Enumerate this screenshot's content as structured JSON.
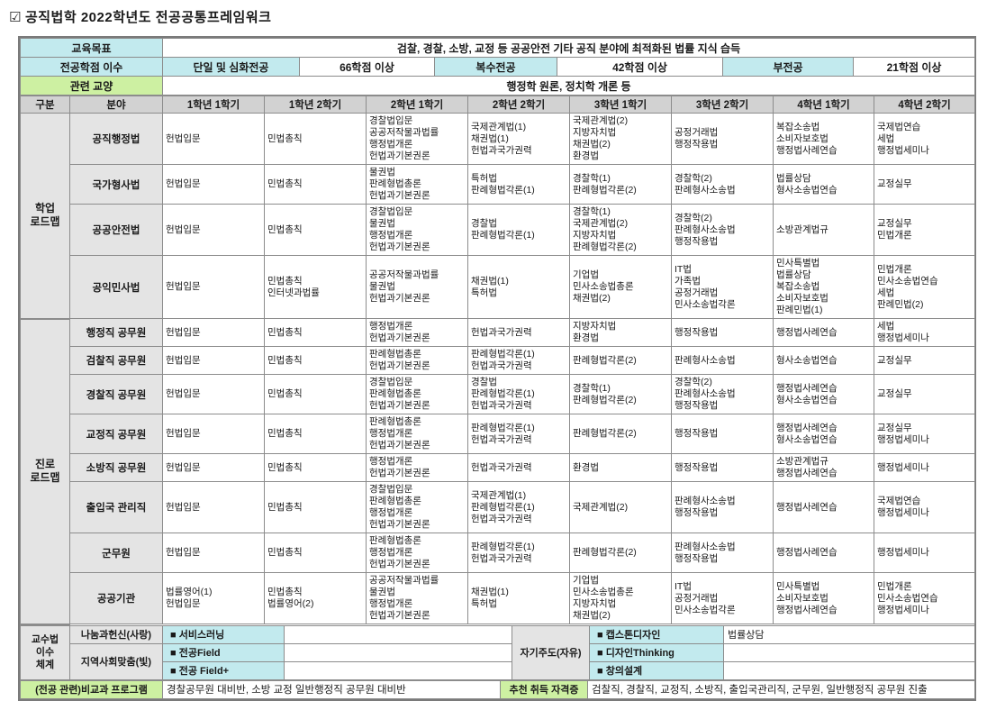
{
  "title": {
    "checkbox": "☑",
    "text": "공직법학 2022학년도 전공공통프레임워크"
  },
  "colors": {
    "cyan": "#c2eaee",
    "green": "#cdf0a2",
    "header_grey": "#d2d2d2",
    "field_grey": "#e4e4e4",
    "border": "#8c8c8c"
  },
  "info": {
    "edu_goal_label": "교육목표",
    "edu_goal_value": "검찰, 경찰, 소방, 교정 등 공공안전 기타 공직 분야에 최적화된 법률 지식 습득",
    "credit_label": "전공학점 이수",
    "credit_items": [
      {
        "label": "단일 및 심화전공",
        "value": "66학점 이상"
      },
      {
        "label": "복수전공",
        "value": "42학점 이상"
      },
      {
        "label": "부전공",
        "value": "21학점 이상"
      }
    ],
    "liberal_label": "관련 교양",
    "liberal_value": "행정학 원론, 정치학 개론 등"
  },
  "roadmap": {
    "columns": [
      "구분",
      "분야",
      "1학년 1학기",
      "1학년 2학기",
      "2학년 1학기",
      "2학년 2학기",
      "3학년 1학기",
      "3학년 2학기",
      "4학년 1학기",
      "4학년 2학기"
    ],
    "sections": [
      {
        "group": "학업\n로드맵",
        "rows": [
          {
            "field": "공직행정법",
            "semesters": [
              [
                "헌법입문"
              ],
              [
                "민법총칙"
              ],
              [
                "경찰법입문",
                "공공저작물과법률",
                "행정법개론",
                "헌법과기본권론"
              ],
              [
                "국제관계법(1)",
                "채권법(1)",
                "헌법과국가권력"
              ],
              [
                "국제관계법(2)",
                "지방자치법",
                "채권법(2)",
                "환경법"
              ],
              [
                "공정거래법",
                "행정작용법"
              ],
              [
                "복잡소송법",
                "소비자보호법",
                "행정법사례연습"
              ],
              [
                "국제법연습",
                "세법",
                "행정법세미나"
              ]
            ]
          },
          {
            "field": "국가형사법",
            "semesters": [
              [
                "헌법입문"
              ],
              [
                "민법총칙"
              ],
              [
                "물권법",
                "판례형법총론",
                "헌법과기본권론"
              ],
              [
                "특허법",
                "판례형법각론(1)"
              ],
              [
                "경찰학(1)",
                "판례형법각론(2)"
              ],
              [
                "경찰학(2)",
                "판례형사소송법"
              ],
              [
                "법률상담",
                "형사소송법연습"
              ],
              [
                "교정실무"
              ]
            ]
          },
          {
            "field": "공공안전법",
            "semesters": [
              [
                "헌법입문"
              ],
              [
                "민법총칙"
              ],
              [
                "경찰법입문",
                "물권법",
                "행정법개론",
                "헌법과기본권론"
              ],
              [
                "경찰법",
                "판례형법각론(1)"
              ],
              [
                "경찰학(1)",
                "국제관계법(2)",
                "지방자치법",
                "판례형법각론(2)"
              ],
              [
                "경찰학(2)",
                "판례형사소송법",
                "행정작용법"
              ],
              [
                "소방관계법규"
              ],
              [
                "교정실무",
                "민법개론"
              ]
            ]
          },
          {
            "field": "공익민사법",
            "semesters": [
              [
                "헌법입문"
              ],
              [
                "민법총칙",
                "인터넷과법률"
              ],
              [
                "공공저작물과법률",
                "물권법",
                "헌법과기본권론"
              ],
              [
                "채권법(1)",
                "특허법"
              ],
              [
                "기업법",
                "민사소송법총론",
                "채권법(2)"
              ],
              [
                "IT법",
                "가족법",
                "공정거래법",
                "민사소송법각론"
              ],
              [
                "민사특별법",
                "법률상담",
                "복잡소송법",
                "소비자보호법",
                "판례민법(1)"
              ],
              [
                "민법개론",
                "민사소송법연습",
                "세법",
                "판례민법(2)"
              ]
            ]
          }
        ]
      },
      {
        "group": "진로\n로드맵",
        "rows": [
          {
            "field": "행정직 공무원",
            "semesters": [
              [
                "헌법입문"
              ],
              [
                "민법총칙"
              ],
              [
                "행정법개론",
                "헌법과기본권론"
              ],
              [
                "헌법과국가권력"
              ],
              [
                "지방자치법",
                "환경법"
              ],
              [
                "행정작용법"
              ],
              [
                "행정법사례연습"
              ],
              [
                "세법",
                "행정법세미나"
              ]
            ]
          },
          {
            "field": "검찰직 공무원",
            "semesters": [
              [
                "헌법입문"
              ],
              [
                "민법총칙"
              ],
              [
                "판례형법총론",
                "헌법과기본권론"
              ],
              [
                "판례형법각론(1)",
                "헌법과국가권력"
              ],
              [
                "판례형법각론(2)"
              ],
              [
                "판례형사소송법"
              ],
              [
                "형사소송법연습"
              ],
              [
                "교정실무"
              ]
            ]
          },
          {
            "field": "경찰직 공무원",
            "semesters": [
              [
                "헌법입문"
              ],
              [
                "민법총칙"
              ],
              [
                "경찰법입문",
                "판례형법총론",
                "헌법과기본권론"
              ],
              [
                "경찰법",
                "판례형법각론(1)",
                "헌법과국가권력"
              ],
              [
                "경찰학(1)",
                "판례형법각론(2)"
              ],
              [
                "경찰학(2)",
                "판례형사소송법",
                "행정작용법"
              ],
              [
                "행정법사례연습",
                "형사소송법연습"
              ],
              [
                "교정실무"
              ]
            ]
          },
          {
            "field": "교정직 공무원",
            "semesters": [
              [
                "헌법입문"
              ],
              [
                "민법총칙"
              ],
              [
                "판례형법총론",
                "행정법개론",
                "헌법과기본권론"
              ],
              [
                "판례형법각론(1)",
                "헌법과국가권력"
              ],
              [
                "판례형법각론(2)"
              ],
              [
                "행정작용법"
              ],
              [
                "행정법사례연습",
                "형사소송법연습"
              ],
              [
                "교정실무",
                "행정법세미나"
              ]
            ]
          },
          {
            "field": "소방직 공무원",
            "semesters": [
              [
                "헌법입문"
              ],
              [
                "민법총칙"
              ],
              [
                "행정법개론",
                "헌법과기본권론"
              ],
              [
                "헌법과국가권력"
              ],
              [
                "환경법"
              ],
              [
                "행정작용법"
              ],
              [
                "소방관계법규",
                "행정법사례연습"
              ],
              [
                "행정법세미나"
              ]
            ]
          },
          {
            "field": "출입국 관리직",
            "semesters": [
              [
                "헌법입문"
              ],
              [
                "민법총칙"
              ],
              [
                "경찰법입문",
                "판례형법총론",
                "행정법개론",
                "헌법과기본권론"
              ],
              [
                "국제관계법(1)",
                "판례형법각론(1)",
                "헌법과국가권력"
              ],
              [
                "국제관계법(2)"
              ],
              [
                "판례형사소송법",
                "행정작용법"
              ],
              [
                "행정법사례연습"
              ],
              [
                "국제법연습",
                "행정법세미나"
              ]
            ]
          },
          {
            "field": "군무원",
            "semesters": [
              [
                "헌법입문"
              ],
              [
                "민법총칙"
              ],
              [
                "판례형법총론",
                "행정법개론",
                "헌법과기본권론"
              ],
              [
                "판례형법각론(1)",
                "헌법과국가권력"
              ],
              [
                "판례형법각론(2)"
              ],
              [
                "판례형사소송법",
                "행정작용법"
              ],
              [
                "행정법사례연습"
              ],
              [
                "행정법세미나"
              ]
            ]
          },
          {
            "field": "공공기관",
            "semesters": [
              [
                "법률영어(1)",
                "헌법입문"
              ],
              [
                "민법총칙",
                "법률영어(2)"
              ],
              [
                "공공저작물과법률",
                "물권법",
                "행정법개론",
                "헌법과기본권론"
              ],
              [
                "채권법(1)",
                "특허법"
              ],
              [
                "기업법",
                "민사소송법총론",
                "지방자치법",
                "채권법(2)"
              ],
              [
                "IT법",
                "공정거래법",
                "민사소송법각론"
              ],
              [
                "민사특별법",
                "소비자보호법",
                "행정법사례연습"
              ],
              [
                "민법개론",
                "민사소송법연습",
                "행정법세미나"
              ]
            ]
          }
        ]
      }
    ]
  },
  "bottom": {
    "group": "교수법\n이수\n체계",
    "row1_label": "나눔과헌신(사랑)",
    "row1_program": "■  서비스러닝",
    "row23_label": "지역사회맞춤(빛)",
    "row2_program": "■  전공Field",
    "row3_program": "■  전공 Field+",
    "self_label": "자기주도(자유)",
    "self_program1": "■  캡스톤디자인",
    "self_program2": "■  디자인Thinking",
    "self_program3": "■  창의설계",
    "self_note": "법률상담",
    "extra_label": "(전공 관련)비교과 프로그램",
    "extra_value": "경찰공무원 대비반, 소방 교정 일반행정직 공무원 대비반",
    "cert_label": "추천 취득 자격증",
    "cert_value": "검찰직, 경찰직, 교정직, 소방직, 출입국관리직, 군무원, 일반행정직 공무원 진출"
  }
}
